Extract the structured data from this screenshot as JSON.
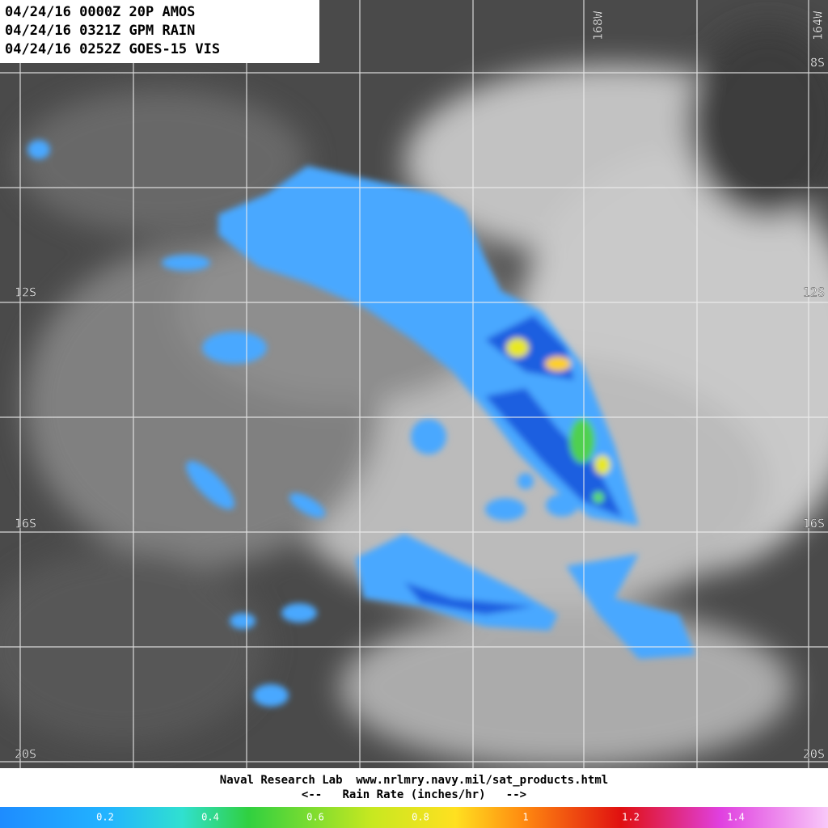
{
  "header": {
    "lines": [
      "04/24/16 0000Z 20P AMOS",
      "04/24/16 0321Z GPM RAIN",
      "04/24/16 0252Z GOES-15 VIS"
    ]
  },
  "map": {
    "lat_labels_left": [
      "12S",
      "16S",
      "20S"
    ],
    "lat_labels_right": [
      "8S",
      "12S",
      "16S",
      "20S"
    ],
    "lon_labels": [
      "168W",
      "164W"
    ]
  },
  "footer": {
    "credit": "Naval Research Lab  www.nrlmry.navy.mil/sat_products.html",
    "legend_title": "<--   Rain Rate (inches/hr)   -->"
  },
  "colorbar": {
    "ticks": [
      0.2,
      0.4,
      0.6,
      0.8,
      1,
      1.2,
      1.4
    ]
  }
}
